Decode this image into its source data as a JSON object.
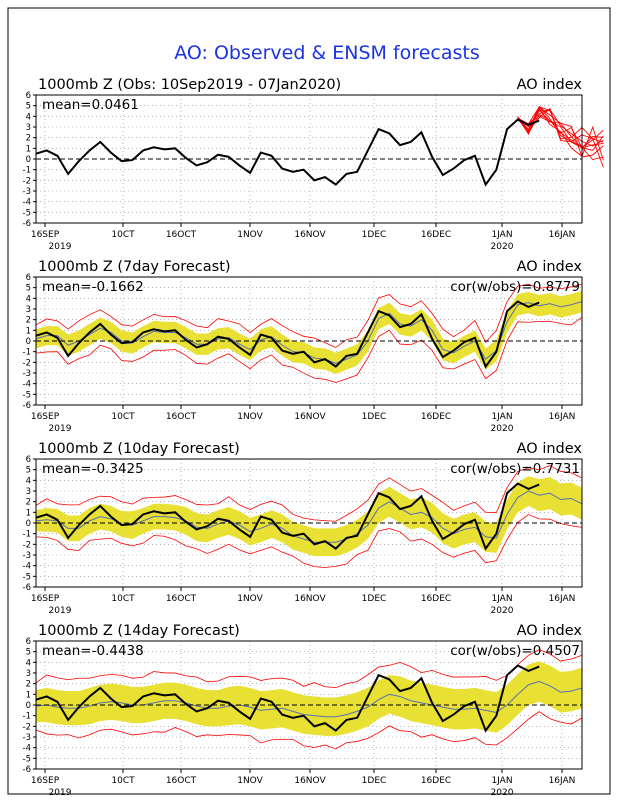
{
  "figure_title": "AO: Observed & ENSM forecasts",
  "colors": {
    "obs": "#000000",
    "ensemble": "#ff0000",
    "spread": "#e8e033",
    "mean_line": "#5b6fb0",
    "title": "#1a33e6",
    "grid": "#888888"
  },
  "x_ticks": [
    "16SEP",
    "10CT",
    "16OCT",
    "1NOV",
    "16NOV",
    "1DEC",
    "16DEC",
    "1JAN",
    "16JAN"
  ],
  "x_year_labels": [
    "2019",
    "2020"
  ],
  "chart_data": [
    {
      "type": "line",
      "title": "1000mb Z (Obs: 10Sep2019 - 07Jan2020)",
      "right_title": "AO index",
      "mean_text": "mean=0.0461",
      "cor_text": "",
      "ylim": [
        -6,
        6
      ],
      "yticks": [
        6,
        5,
        4,
        3,
        2,
        1,
        0,
        -1,
        -2,
        -3,
        -4,
        -5,
        -6
      ],
      "observed": [
        0.5,
        0.8,
        0.3,
        -1.4,
        -0.2,
        0.8,
        1.6,
        0.6,
        -0.2,
        -0.1,
        0.8,
        1.1,
        0.9,
        1.0,
        0.1,
        -0.6,
        -0.3,
        0.4,
        0.2,
        -0.6,
        -1.3,
        0.6,
        0.3,
        -0.9,
        -1.2,
        -1.0,
        -2.0,
        -1.7,
        -2.4,
        -1.4,
        -1.2,
        0.8,
        2.8,
        2.4,
        1.3,
        1.6,
        2.5,
        0.2,
        -1.5,
        -0.9,
        -0.1,
        0.3,
        -2.4,
        -1.0,
        2.8,
        3.7,
        3.2,
        3.6
      ],
      "forecast_center": [
        3.8,
        2.8,
        4.3,
        4.0,
        2.8,
        2.0,
        1.6,
        1.2,
        1.0
      ],
      "forecast_spread": [
        0.2,
        0.6,
        0.7,
        0.9,
        1.2,
        1.4,
        1.6,
        1.8,
        2.0
      ],
      "band_width": []
    },
    {
      "type": "line",
      "title": "1000mb Z (7day Forecast)",
      "right_title": "AO index",
      "mean_text": "mean=-0.1662",
      "cor_text": "cor(w/obs)=0.8779",
      "ylim": [
        -6,
        6
      ],
      "yticks": [
        6,
        5,
        4,
        3,
        2,
        1,
        0,
        -1,
        -2,
        -3,
        -4,
        -5,
        -6
      ],
      "observed": [
        0.5,
        0.8,
        0.3,
        -1.4,
        -0.2,
        0.8,
        1.6,
        0.6,
        -0.2,
        -0.1,
        0.8,
        1.1,
        0.9,
        1.0,
        0.1,
        -0.6,
        -0.3,
        0.4,
        0.2,
        -0.6,
        -1.3,
        0.6,
        0.3,
        -0.9,
        -1.2,
        -1.0,
        -2.0,
        -1.7,
        -2.4,
        -1.4,
        -1.2,
        0.8,
        2.8,
        2.4,
        1.3,
        1.6,
        2.5,
        0.2,
        -1.5,
        -0.9,
        -0.1,
        0.3,
        -2.4,
        -1.0,
        2.8,
        3.7,
        3.2,
        3.6
      ],
      "forecast_center": [
        0.2,
        0.5,
        0.5,
        -0.4,
        0.0,
        0.6,
        1.2,
        0.8,
        0.0,
        -0.2,
        0.4,
        0.9,
        0.8,
        0.8,
        0.3,
        -0.3,
        -0.3,
        0.2,
        0.3,
        -0.3,
        -0.8,
        0.1,
        0.4,
        -0.4,
        -1.0,
        -1.1,
        -1.6,
        -1.7,
        -2.1,
        -1.7,
        -1.3,
        0.0,
        2.1,
        2.6,
        1.6,
        1.4,
        2.0,
        1.0,
        -0.8,
        -1.1,
        -0.5,
        0.0,
        -1.7,
        -0.9,
        1.8,
        3.4,
        3.6,
        3.3,
        3.5,
        3.2,
        3.4,
        3.7
      ],
      "forecast_spread": [],
      "band_width": [
        0.9,
        0.9,
        0.9,
        1.0,
        1.0,
        1.0,
        1.0,
        1.0,
        1.0,
        1.0,
        1.0,
        1.0,
        1.0,
        1.0,
        1.0,
        1.0,
        1.0,
        1.0,
        1.0,
        1.0,
        1.0,
        1.0,
        1.0,
        1.0,
        1.0,
        1.0,
        1.0,
        1.0,
        1.0,
        1.0,
        1.0,
        1.0,
        1.0,
        1.0,
        1.0,
        1.0,
        1.0,
        1.0,
        1.0,
        1.0,
        1.0,
        1.0,
        1.0,
        1.0,
        1.0,
        1.0,
        1.0,
        1.0,
        1.0,
        1.0,
        1.0,
        1.0
      ]
    },
    {
      "type": "line",
      "title": "1000mb Z (10day Forecast)",
      "right_title": "AO index",
      "mean_text": "mean=-0.3425",
      "cor_text": "cor(w/obs)=0.7731",
      "ylim": [
        -6,
        6
      ],
      "yticks": [
        6,
        5,
        4,
        3,
        2,
        1,
        0,
        -1,
        -2,
        -3,
        -4,
        -5,
        -6
      ],
      "observed": [
        0.5,
        0.8,
        0.3,
        -1.4,
        -0.2,
        0.8,
        1.6,
        0.6,
        -0.2,
        -0.1,
        0.8,
        1.1,
        0.9,
        1.0,
        0.1,
        -0.6,
        -0.3,
        0.4,
        0.2,
        -0.6,
        -1.3,
        0.6,
        0.3,
        -0.9,
        -1.2,
        -1.0,
        -2.0,
        -1.7,
        -2.4,
        -1.4,
        -1.2,
        0.8,
        2.8,
        2.4,
        1.3,
        1.6,
        2.5,
        0.2,
        -1.5,
        -0.9,
        -0.1,
        0.3,
        -2.4,
        -1.0,
        2.8,
        3.7,
        3.2,
        3.6
      ],
      "forecast_center": [
        0.2,
        0.3,
        0.2,
        -0.5,
        -0.5,
        0.2,
        0.6,
        0.4,
        -0.1,
        -0.2,
        0.2,
        0.6,
        0.6,
        0.5,
        0.2,
        -0.4,
        -0.5,
        -0.1,
        0.2,
        -0.2,
        -0.8,
        -0.5,
        -0.1,
        -0.5,
        -1.2,
        -1.5,
        -1.8,
        -1.8,
        -1.8,
        -1.5,
        -1.0,
        -0.2,
        1.4,
        2.0,
        1.4,
        0.8,
        1.0,
        0.5,
        -0.5,
        -1.0,
        -0.6,
        -0.4,
        -1.3,
        -1.4,
        0.8,
        2.4,
        3.0,
        2.6,
        2.8,
        2.2,
        2.3,
        1.8
      ],
      "forecast_spread": [],
      "band_width": [
        1.0,
        1.1,
        1.1,
        1.2,
        1.2,
        1.2,
        1.2,
        1.2,
        1.2,
        1.3,
        1.2,
        1.2,
        1.2,
        1.2,
        1.3,
        1.3,
        1.3,
        1.3,
        1.3,
        1.3,
        1.3,
        1.3,
        1.3,
        1.3,
        1.3,
        1.3,
        1.3,
        1.3,
        1.3,
        1.3,
        1.3,
        1.3,
        1.4,
        1.4,
        1.4,
        1.4,
        1.4,
        1.4,
        1.4,
        1.4,
        1.4,
        1.4,
        1.4,
        1.4,
        1.4,
        1.4,
        1.4,
        1.5,
        1.5,
        1.5,
        1.5,
        1.5
      ]
    },
    {
      "type": "line",
      "title": "1000mb Z (14day Forecast)",
      "right_title": "AO index",
      "mean_text": "mean=-0.4438",
      "cor_text": "cor(w/obs)=0.4507",
      "ylim": [
        -6,
        6
      ],
      "yticks": [
        6,
        5,
        4,
        3,
        2,
        1,
        0,
        -1,
        -2,
        -3,
        -4,
        -5,
        -6
      ],
      "observed": [
        0.5,
        0.8,
        0.3,
        -1.4,
        -0.2,
        0.8,
        1.6,
        0.6,
        -0.2,
        -0.1,
        0.8,
        1.1,
        0.9,
        1.0,
        0.1,
        -0.6,
        -0.3,
        0.4,
        0.2,
        -0.6,
        -1.3,
        0.6,
        0.3,
        -0.9,
        -1.2,
        -1.0,
        -2.0,
        -1.7,
        -2.4,
        -1.4,
        -1.2,
        0.8,
        2.8,
        2.4,
        1.3,
        1.6,
        2.5,
        0.2,
        -1.5,
        -0.9,
        -0.1,
        0.3,
        -2.4,
        -1.0,
        2.8,
        3.7,
        3.2,
        3.6
      ],
      "forecast_center": [
        -0.1,
        0.0,
        -0.2,
        -0.3,
        -0.3,
        -0.1,
        0.2,
        0.3,
        0.2,
        0.0,
        0.0,
        0.2,
        0.4,
        0.4,
        0.2,
        -0.1,
        -0.3,
        -0.3,
        -0.1,
        0.0,
        -0.2,
        -0.5,
        -0.4,
        -0.3,
        -0.6,
        -0.9,
        -1.0,
        -1.1,
        -1.1,
        -0.9,
        -0.6,
        -0.2,
        0.5,
        1.0,
        0.8,
        0.4,
        0.2,
        0.0,
        -0.2,
        -0.4,
        -0.4,
        -0.3,
        -0.5,
        -0.7,
        0.0,
        1.0,
        1.9,
        2.2,
        1.8,
        1.2,
        1.3,
        1.6
      ],
      "forecast_spread": [],
      "band_width": [
        1.5,
        1.6,
        1.6,
        1.6,
        1.6,
        1.7,
        1.7,
        1.7,
        1.7,
        1.7,
        1.7,
        1.7,
        1.7,
        1.7,
        1.7,
        1.7,
        1.7,
        1.7,
        1.8,
        1.8,
        1.8,
        1.8,
        1.8,
        1.8,
        1.8,
        1.8,
        1.8,
        1.8,
        1.8,
        1.8,
        1.8,
        1.8,
        1.8,
        1.8,
        1.9,
        1.9,
        1.9,
        1.9,
        1.9,
        1.9,
        1.9,
        1.9,
        1.9,
        1.9,
        1.9,
        1.9,
        1.9,
        1.9,
        1.9,
        1.9,
        1.9,
        1.9
      ]
    }
  ]
}
